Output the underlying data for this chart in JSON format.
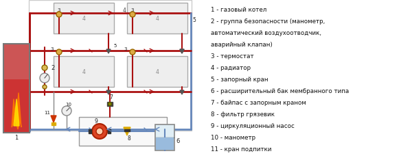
{
  "legend_items": [
    "1 - газовый котел",
    "2 - группа безопасности (манометр,",
    "автоматический воздухоотводчик,",
    "аварийный клапан)",
    "3 - термостат",
    "4 - радиатор",
    "5 - запорный кран",
    "6 - расширительный бак мембранного типа",
    "7 - байпас с запорным краном",
    "8 - фильтр грязевик",
    "9 - циркуляционный насос",
    "10 - манометр",
    "11 - кран подпитки"
  ],
  "bg_color": "#f5f5f5",
  "pipe_hot_color": "#aa1111",
  "pipe_cold_color": "#6688bb",
  "frame_color": "#999999"
}
